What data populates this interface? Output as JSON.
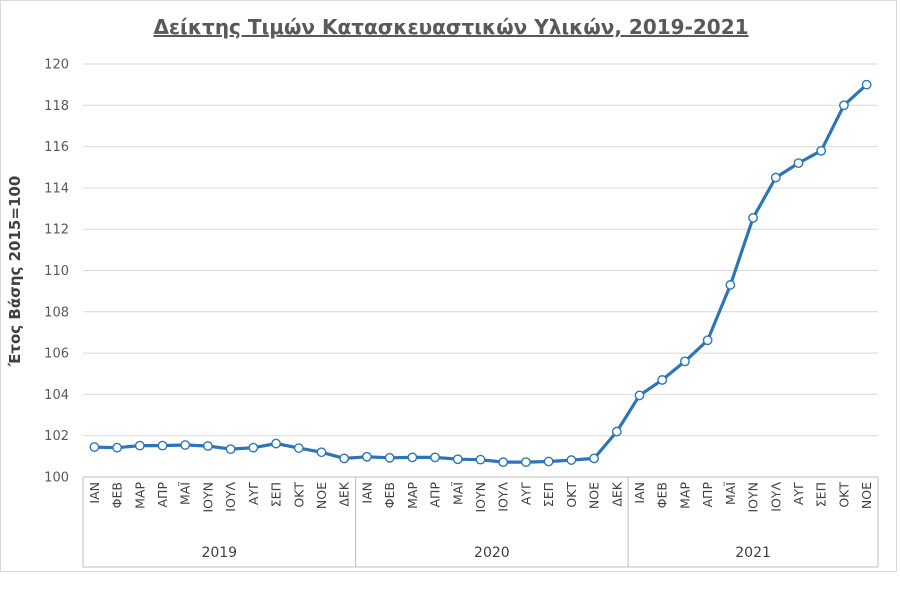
{
  "chart_data": {
    "type": "line",
    "title": "Δείκτης Τιμών Κατασκευαστικών Υλικών, 2019-2021",
    "ylabel": "Έτος Βάσης 2015=100",
    "xlabel": "",
    "ylim": [
      100,
      120
    ],
    "yticks": [
      100,
      102,
      104,
      106,
      108,
      110,
      112,
      114,
      116,
      118,
      120
    ],
    "grid": true,
    "legend": "none",
    "line_color": "#2E75B6",
    "groups": [
      {
        "label": "2019",
        "months": [
          "ΙΑΝ",
          "ΦΕΒ",
          "ΜΑΡ",
          "ΑΠΡ",
          "ΜΑΪ",
          "ΙΟΥΝ",
          "ΙΟΥΛ",
          "ΑΥΓ",
          "ΣΕΠ",
          "ΟΚΤ",
          "ΝΟΕ",
          "ΔΕΚ"
        ]
      },
      {
        "label": "2020",
        "months": [
          "ΙΑΝ",
          "ΦΕΒ",
          "ΜΑΡ",
          "ΑΠΡ",
          "ΜΑΪ",
          "ΙΟΥΝ",
          "ΙΟΥΛ",
          "ΑΥΓ",
          "ΣΕΠ",
          "ΟΚΤ",
          "ΝΟΕ",
          "ΔΕΚ"
        ]
      },
      {
        "label": "2021",
        "months": [
          "ΙΑΝ",
          "ΦΕΒ",
          "ΜΑΡ",
          "ΑΠΡ",
          "ΜΑΪ",
          "ΙΟΥΝ",
          "ΙΟΥΛ",
          "ΑΥΓ",
          "ΣΕΠ",
          "ΟΚΤ",
          "ΝΟΕ"
        ]
      }
    ],
    "series": [
      {
        "values": [
          101.45,
          101.42,
          101.52,
          101.52,
          101.55,
          101.5,
          101.35,
          101.42,
          101.62,
          101.4,
          101.2,
          100.9,
          100.98,
          100.93,
          100.95,
          100.95,
          100.86,
          100.84,
          100.72,
          100.72,
          100.75,
          100.82,
          100.9,
          102.2,
          103.95,
          104.7,
          105.6,
          106.62,
          109.3,
          112.55,
          114.5,
          115.2,
          115.8,
          118.0,
          119.0
        ]
      }
    ]
  }
}
